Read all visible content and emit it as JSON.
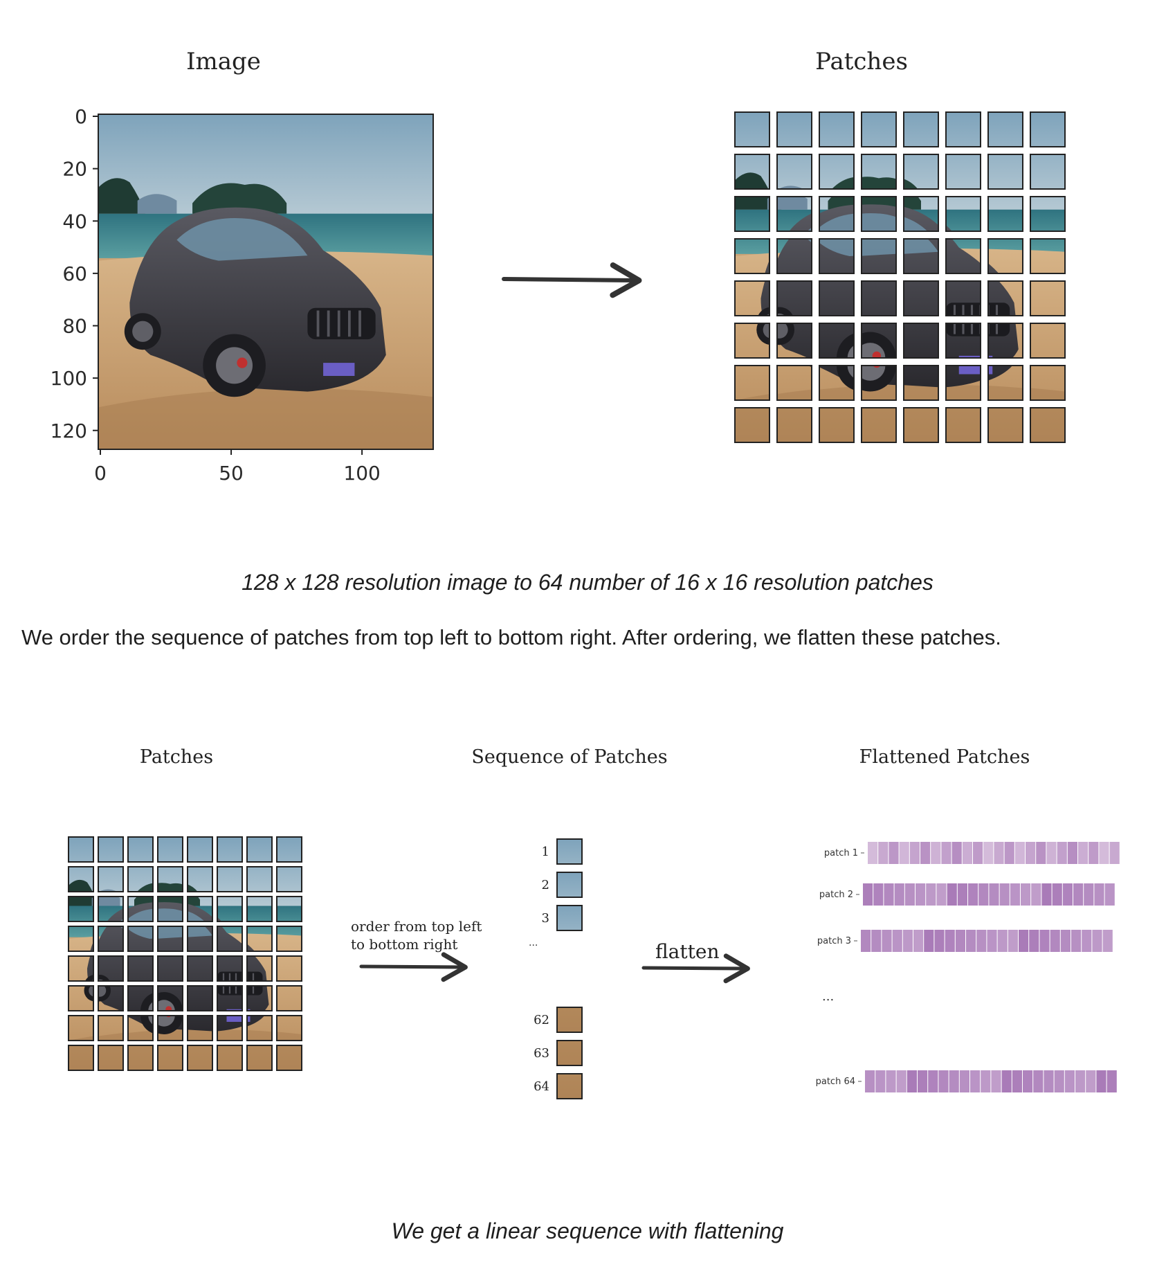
{
  "top_figure": {
    "image_title": "Image",
    "patches_title": "Patches",
    "y_ticks": [
      "0",
      "20",
      "40",
      "60",
      "80",
      "100",
      "120"
    ],
    "x_ticks": [
      "0",
      "50",
      "100"
    ],
    "grid_size": 8
  },
  "caption_1": "128 x 128 resolution image to 64 number of 16 x 16 resolution patches",
  "paragraph": "We order the sequence of patches from top left to bottom right. After ordering, we flatten these patches.",
  "bottom_figure": {
    "patches_title": "Patches",
    "sequence_title": "Sequence of Patches",
    "flattened_title": "Flattened Patches",
    "order_label_line1": "order from  top left",
    "order_label_line2": "to bottom right",
    "flatten_label": "flatten",
    "sequence_labels_top": [
      "1",
      "2",
      "3"
    ],
    "sequence_ellipsis": "...",
    "sequence_labels_bottom": [
      "62",
      "63",
      "64"
    ],
    "flattened_rows": [
      {
        "label": "patch 1"
      },
      {
        "label": "patch 2"
      },
      {
        "label": "patch 3"
      },
      {
        "label": "patch 64"
      }
    ],
    "flattened_ellipsis": "..."
  },
  "caption_2": "We get a linear sequence with flattening",
  "colors": {
    "sky": "#8fb1c6",
    "sea": "#3d7f86",
    "sand": "#c9a071",
    "car_dark": "#3b3a40",
    "purple_light": "#dcc6e0",
    "purple_dark": "#a97bb8",
    "arrow": "#333333"
  }
}
